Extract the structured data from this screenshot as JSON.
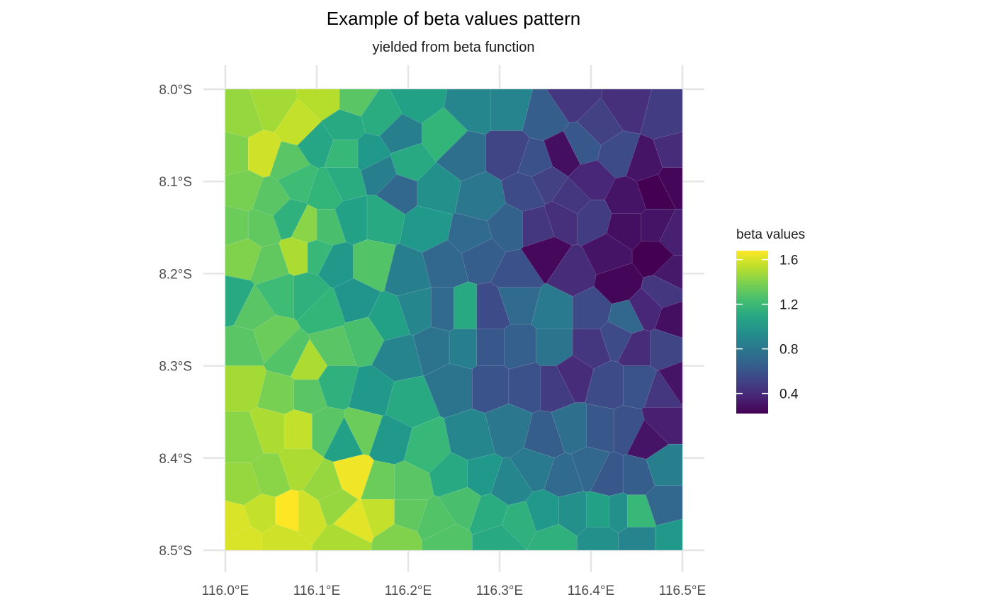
{
  "chart_data": {
    "type": "heatmap",
    "subtype": "voronoi-map",
    "title": "Example of beta values pattern",
    "subtitle": "yielded from beta function",
    "x_ticks": [
      116.0,
      116.1,
      116.2,
      116.3,
      116.4,
      116.5
    ],
    "x_tick_labels": [
      "116.0°E",
      "116.1°E",
      "116.2°E",
      "116.3°E",
      "116.4°E",
      "116.5°E"
    ],
    "y_ticks": [
      -8.0,
      -8.1,
      -8.2,
      -8.3,
      -8.4,
      -8.5
    ],
    "y_tick_labels": [
      "8.0°S",
      "8.1°S",
      "8.2°S",
      "8.3°S",
      "8.4°S",
      "8.5°S"
    ],
    "xlim": [
      116.0,
      116.5
    ],
    "ylim": [
      -8.5,
      -8.0
    ],
    "grid": true,
    "colormap": "viridis",
    "color_range": [
      0.22,
      1.68
    ],
    "legend": {
      "title": "beta values",
      "position": "right",
      "ticks": [
        1.6,
        1.2,
        0.8,
        0.4
      ],
      "tick_labels": [
        "1.6",
        "1.2",
        "0.8",
        "0.4"
      ]
    },
    "cells": [
      {
        "x": 116.02,
        "y": -8.03,
        "value": 1.45
      },
      {
        "x": 116.05,
        "y": -8.02,
        "value": 1.48
      },
      {
        "x": 116.08,
        "y": -8.04,
        "value": 1.55
      },
      {
        "x": 116.11,
        "y": -8.01,
        "value": 1.52
      },
      {
        "x": 116.13,
        "y": -8.04,
        "value": 1.1
      },
      {
        "x": 116.14,
        "y": -8.01,
        "value": 1.3
      },
      {
        "x": 116.17,
        "y": -8.03,
        "value": 1.12
      },
      {
        "x": 116.21,
        "y": -8.01,
        "value": 1.05
      },
      {
        "x": 116.24,
        "y": -8.05,
        "value": 1.18
      },
      {
        "x": 116.27,
        "y": -8.02,
        "value": 0.9
      },
      {
        "x": 116.31,
        "y": -8.02,
        "value": 0.88
      },
      {
        "x": 116.35,
        "y": -8.03,
        "value": 0.65
      },
      {
        "x": 116.38,
        "y": -8.01,
        "value": 0.45
      },
      {
        "x": 116.41,
        "y": -8.04,
        "value": 0.5
      },
      {
        "x": 116.44,
        "y": -8.02,
        "value": 0.42
      },
      {
        "x": 116.48,
        "y": -8.03,
        "value": 0.48
      },
      {
        "x": 116.01,
        "y": -8.07,
        "value": 1.4
      },
      {
        "x": 116.04,
        "y": -8.07,
        "value": 1.58
      },
      {
        "x": 116.07,
        "y": -8.08,
        "value": 1.3
      },
      {
        "x": 116.1,
        "y": -8.06,
        "value": 1.08
      },
      {
        "x": 116.13,
        "y": -8.07,
        "value": 1.2
      },
      {
        "x": 116.16,
        "y": -8.07,
        "value": 1.0
      },
      {
        "x": 116.19,
        "y": -8.05,
        "value": 0.85
      },
      {
        "x": 116.2,
        "y": -8.08,
        "value": 1.1
      },
      {
        "x": 116.26,
        "y": -8.07,
        "value": 0.75
      },
      {
        "x": 116.31,
        "y": -8.07,
        "value": 0.52
      },
      {
        "x": 116.34,
        "y": -8.08,
        "value": 0.58
      },
      {
        "x": 116.37,
        "y": -8.07,
        "value": 0.28
      },
      {
        "x": 116.39,
        "y": -8.06,
        "value": 0.62
      },
      {
        "x": 116.43,
        "y": -8.07,
        "value": 0.55
      },
      {
        "x": 116.46,
        "y": -8.08,
        "value": 0.3
      },
      {
        "x": 116.49,
        "y": -8.07,
        "value": 0.4
      },
      {
        "x": 116.02,
        "y": -8.11,
        "value": 1.38
      },
      {
        "x": 116.05,
        "y": -8.12,
        "value": 1.3
      },
      {
        "x": 116.08,
        "y": -8.1,
        "value": 1.22
      },
      {
        "x": 116.11,
        "y": -8.11,
        "value": 1.18
      },
      {
        "x": 116.13,
        "y": -8.1,
        "value": 1.12
      },
      {
        "x": 116.17,
        "y": -8.09,
        "value": 0.85
      },
      {
        "x": 116.19,
        "y": -8.11,
        "value": 0.7
      },
      {
        "x": 116.23,
        "y": -8.11,
        "value": 0.95
      },
      {
        "x": 116.28,
        "y": -8.12,
        "value": 0.8
      },
      {
        "x": 116.33,
        "y": -8.11,
        "value": 0.55
      },
      {
        "x": 116.35,
        "y": -8.1,
        "value": 0.5
      },
      {
        "x": 116.38,
        "y": -8.12,
        "value": 0.45
      },
      {
        "x": 116.4,
        "y": -8.1,
        "value": 0.38
      },
      {
        "x": 116.44,
        "y": -8.12,
        "value": 0.3
      },
      {
        "x": 116.47,
        "y": -8.11,
        "value": 0.22
      },
      {
        "x": 116.49,
        "y": -8.1,
        "value": 0.24
      },
      {
        "x": 116.01,
        "y": -8.15,
        "value": 1.35
      },
      {
        "x": 116.04,
        "y": -8.15,
        "value": 1.32
      },
      {
        "x": 116.07,
        "y": -8.14,
        "value": 1.15
      },
      {
        "x": 116.09,
        "y": -8.15,
        "value": 1.42
      },
      {
        "x": 116.11,
        "y": -8.15,
        "value": 1.25
      },
      {
        "x": 116.14,
        "y": -8.14,
        "value": 1.05
      },
      {
        "x": 116.17,
        "y": -8.14,
        "value": 1.1
      },
      {
        "x": 116.22,
        "y": -8.15,
        "value": 1.0
      },
      {
        "x": 116.27,
        "y": -8.16,
        "value": 0.72
      },
      {
        "x": 116.31,
        "y": -8.15,
        "value": 0.68
      },
      {
        "x": 116.34,
        "y": -8.15,
        "value": 0.45
      },
      {
        "x": 116.37,
        "y": -8.14,
        "value": 0.42
      },
      {
        "x": 116.4,
        "y": -8.14,
        "value": 0.48
      },
      {
        "x": 116.44,
        "y": -8.15,
        "value": 0.28
      },
      {
        "x": 116.47,
        "y": -8.15,
        "value": 0.3
      },
      {
        "x": 116.49,
        "y": -8.16,
        "value": 0.35
      },
      {
        "x": 116.02,
        "y": -8.18,
        "value": 1.4
      },
      {
        "x": 116.05,
        "y": -8.19,
        "value": 1.32
      },
      {
        "x": 116.08,
        "y": -8.18,
        "value": 1.5
      },
      {
        "x": 116.1,
        "y": -8.18,
        "value": 1.2
      },
      {
        "x": 116.12,
        "y": -8.19,
        "value": 1.0
      },
      {
        "x": 116.16,
        "y": -8.19,
        "value": 1.28
      },
      {
        "x": 116.2,
        "y": -8.2,
        "value": 0.85
      },
      {
        "x": 116.24,
        "y": -8.19,
        "value": 0.7
      },
      {
        "x": 116.28,
        "y": -8.18,
        "value": 0.65
      },
      {
        "x": 116.32,
        "y": -8.2,
        "value": 0.58
      },
      {
        "x": 116.35,
        "y": -8.18,
        "value": 0.25
      },
      {
        "x": 116.38,
        "y": -8.2,
        "value": 0.4
      },
      {
        "x": 116.42,
        "y": -8.18,
        "value": 0.3
      },
      {
        "x": 116.47,
        "y": -8.18,
        "value": 0.22
      },
      {
        "x": 116.49,
        "y": -8.2,
        "value": 0.32
      },
      {
        "x": 116.01,
        "y": -8.23,
        "value": 1.1
      },
      {
        "x": 116.03,
        "y": -8.24,
        "value": 1.3
      },
      {
        "x": 116.06,
        "y": -8.22,
        "value": 1.22
      },
      {
        "x": 116.09,
        "y": -8.22,
        "value": 1.15
      },
      {
        "x": 116.11,
        "y": -8.24,
        "value": 1.18
      },
      {
        "x": 116.14,
        "y": -8.23,
        "value": 0.98
      },
      {
        "x": 116.18,
        "y": -8.25,
        "value": 1.05
      },
      {
        "x": 116.21,
        "y": -8.24,
        "value": 0.9
      },
      {
        "x": 116.24,
        "y": -8.24,
        "value": 0.72
      },
      {
        "x": 116.26,
        "y": -8.24,
        "value": 1.1
      },
      {
        "x": 116.29,
        "y": -8.24,
        "value": 0.55
      },
      {
        "x": 116.32,
        "y": -8.23,
        "value": 0.72
      },
      {
        "x": 116.36,
        "y": -8.24,
        "value": 0.82
      },
      {
        "x": 116.4,
        "y": -8.24,
        "value": 0.55
      },
      {
        "x": 116.43,
        "y": -8.21,
        "value": 0.24
      },
      {
        "x": 116.44,
        "y": -8.25,
        "value": 0.7
      },
      {
        "x": 116.46,
        "y": -8.24,
        "value": 0.38
      },
      {
        "x": 116.48,
        "y": -8.22,
        "value": 0.45
      },
      {
        "x": 116.49,
        "y": -8.25,
        "value": 0.28
      },
      {
        "x": 116.02,
        "y": -8.28,
        "value": 1.3
      },
      {
        "x": 116.05,
        "y": -8.27,
        "value": 1.35
      },
      {
        "x": 116.07,
        "y": -8.29,
        "value": 1.28
      },
      {
        "x": 116.09,
        "y": -8.3,
        "value": 1.5
      },
      {
        "x": 116.12,
        "y": -8.28,
        "value": 1.3
      },
      {
        "x": 116.15,
        "y": -8.27,
        "value": 1.25
      },
      {
        "x": 116.19,
        "y": -8.29,
        "value": 0.88
      },
      {
        "x": 116.23,
        "y": -8.28,
        "value": 0.78
      },
      {
        "x": 116.26,
        "y": -8.28,
        "value": 0.85
      },
      {
        "x": 116.29,
        "y": -8.28,
        "value": 0.62
      },
      {
        "x": 116.32,
        "y": -8.28,
        "value": 0.66
      },
      {
        "x": 116.36,
        "y": -8.28,
        "value": 0.78
      },
      {
        "x": 116.4,
        "y": -8.28,
        "value": 0.45
      },
      {
        "x": 116.43,
        "y": -8.27,
        "value": 0.55
      },
      {
        "x": 116.45,
        "y": -8.28,
        "value": 0.4
      },
      {
        "x": 116.48,
        "y": -8.28,
        "value": 0.52
      },
      {
        "x": 116.02,
        "y": -8.32,
        "value": 1.48
      },
      {
        "x": 116.06,
        "y": -8.33,
        "value": 1.38
      },
      {
        "x": 116.09,
        "y": -8.33,
        "value": 1.3
      },
      {
        "x": 116.12,
        "y": -8.32,
        "value": 1.15
      },
      {
        "x": 116.16,
        "y": -8.33,
        "value": 1.0
      },
      {
        "x": 116.2,
        "y": -8.34,
        "value": 1.1
      },
      {
        "x": 116.25,
        "y": -8.32,
        "value": 0.78
      },
      {
        "x": 116.29,
        "y": -8.32,
        "value": 0.6
      },
      {
        "x": 116.33,
        "y": -8.32,
        "value": 0.58
      },
      {
        "x": 116.36,
        "y": -8.32,
        "value": 0.48
      },
      {
        "x": 116.38,
        "y": -8.31,
        "value": 0.4
      },
      {
        "x": 116.42,
        "y": -8.32,
        "value": 0.55
      },
      {
        "x": 116.45,
        "y": -8.32,
        "value": 0.6
      },
      {
        "x": 116.48,
        "y": -8.33,
        "value": 0.45
      },
      {
        "x": 116.495,
        "y": -8.32,
        "value": 0.3
      },
      {
        "x": 116.02,
        "y": -8.38,
        "value": 1.42
      },
      {
        "x": 116.05,
        "y": -8.37,
        "value": 1.5
      },
      {
        "x": 116.08,
        "y": -8.37,
        "value": 1.55
      },
      {
        "x": 116.11,
        "y": -8.37,
        "value": 1.3
      },
      {
        "x": 116.13,
        "y": -8.38,
        "value": 1.05
      },
      {
        "x": 116.15,
        "y": -8.37,
        "value": 1.35
      },
      {
        "x": 116.18,
        "y": -8.38,
        "value": 1.0
      },
      {
        "x": 116.22,
        "y": -8.39,
        "value": 1.2
      },
      {
        "x": 116.27,
        "y": -8.38,
        "value": 0.9
      },
      {
        "x": 116.31,
        "y": -8.37,
        "value": 0.8
      },
      {
        "x": 116.35,
        "y": -8.38,
        "value": 0.65
      },
      {
        "x": 116.38,
        "y": -8.37,
        "value": 0.75
      },
      {
        "x": 116.41,
        "y": -8.37,
        "value": 0.62
      },
      {
        "x": 116.44,
        "y": -8.37,
        "value": 0.58
      },
      {
        "x": 116.46,
        "y": -8.38,
        "value": 0.3
      },
      {
        "x": 116.48,
        "y": -8.36,
        "value": 0.35
      },
      {
        "x": 116.02,
        "y": -8.43,
        "value": 1.45
      },
      {
        "x": 116.05,
        "y": -8.42,
        "value": 1.42
      },
      {
        "x": 116.08,
        "y": -8.41,
        "value": 1.5
      },
      {
        "x": 116.11,
        "y": -8.43,
        "value": 1.45
      },
      {
        "x": 116.14,
        "y": -8.42,
        "value": 1.65
      },
      {
        "x": 116.17,
        "y": -8.43,
        "value": 1.35
      },
      {
        "x": 116.2,
        "y": -8.43,
        "value": 1.3
      },
      {
        "x": 116.25,
        "y": -8.42,
        "value": 1.1
      },
      {
        "x": 116.28,
        "y": -8.42,
        "value": 1.0
      },
      {
        "x": 116.31,
        "y": -8.43,
        "value": 0.9
      },
      {
        "x": 116.34,
        "y": -8.41,
        "value": 0.82
      },
      {
        "x": 116.37,
        "y": -8.42,
        "value": 0.72
      },
      {
        "x": 116.4,
        "y": -8.41,
        "value": 0.7
      },
      {
        "x": 116.42,
        "y": -8.42,
        "value": 0.62
      },
      {
        "x": 116.45,
        "y": -8.42,
        "value": 0.65
      },
      {
        "x": 116.48,
        "y": -8.41,
        "value": 0.85
      },
      {
        "x": 116.01,
        "y": -8.47,
        "value": 1.6
      },
      {
        "x": 116.04,
        "y": -8.46,
        "value": 1.55
      },
      {
        "x": 116.07,
        "y": -8.46,
        "value": 1.68
      },
      {
        "x": 116.09,
        "y": -8.46,
        "value": 1.58
      },
      {
        "x": 116.12,
        "y": -8.45,
        "value": 1.45
      },
      {
        "x": 116.14,
        "y": -8.47,
        "value": 1.62
      },
      {
        "x": 116.17,
        "y": -8.46,
        "value": 1.55
      },
      {
        "x": 116.2,
        "y": -8.46,
        "value": 1.32
      },
      {
        "x": 116.23,
        "y": -8.47,
        "value": 1.28
      },
      {
        "x": 116.26,
        "y": -8.45,
        "value": 1.25
      },
      {
        "x": 116.29,
        "y": -8.46,
        "value": 1.12
      },
      {
        "x": 116.32,
        "y": -8.47,
        "value": 1.15
      },
      {
        "x": 116.35,
        "y": -8.46,
        "value": 1.0
      },
      {
        "x": 116.38,
        "y": -8.46,
        "value": 0.95
      },
      {
        "x": 116.41,
        "y": -8.46,
        "value": 1.05
      },
      {
        "x": 116.43,
        "y": -8.46,
        "value": 0.95
      },
      {
        "x": 116.45,
        "y": -8.46,
        "value": 1.2
      },
      {
        "x": 116.48,
        "y": -8.45,
        "value": 0.7
      },
      {
        "x": 116.02,
        "y": -8.49,
        "value": 1.6
      },
      {
        "x": 116.06,
        "y": -8.49,
        "value": 1.58
      },
      {
        "x": 116.13,
        "y": -8.49,
        "value": 1.5
      },
      {
        "x": 116.19,
        "y": -8.49,
        "value": 1.4
      },
      {
        "x": 116.24,
        "y": -8.49,
        "value": 1.28
      },
      {
        "x": 116.3,
        "y": -8.49,
        "value": 1.1
      },
      {
        "x": 116.36,
        "y": -8.49,
        "value": 1.15
      },
      {
        "x": 116.41,
        "y": -8.49,
        "value": 0.95
      },
      {
        "x": 116.45,
        "y": -8.49,
        "value": 0.88
      },
      {
        "x": 116.49,
        "y": -8.49,
        "value": 1.0
      }
    ]
  }
}
